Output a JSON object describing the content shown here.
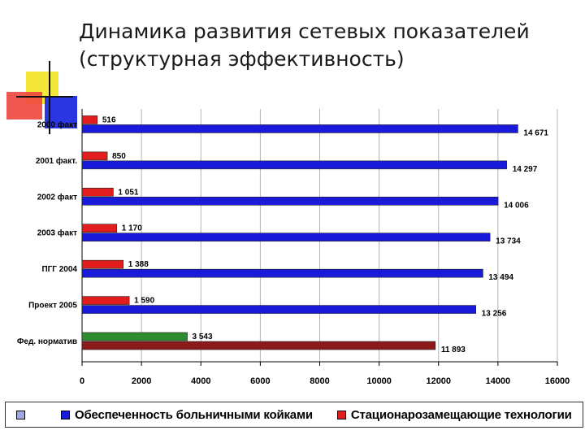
{
  "title": {
    "line1": "Динамика развития сетевых показателей",
    "line2": "(структурная эффективность)"
  },
  "colors": {
    "beds": "#1a1adb",
    "tech": "#e21d1d",
    "norm_tech": "#2e8b2e",
    "norm_beds": "#8b1a1a",
    "legend_misc": "#9da6e6"
  },
  "chart_data": {
    "type": "bar",
    "orientation": "horizontal",
    "categories": [
      "2000 факт",
      "2001 факт.",
      "2002 факт",
      "2003 факт",
      "ПГГ 2004",
      "Проект 2005",
      "Фед. норматив"
    ],
    "series": [
      {
        "name": "Стационарозамещающие технологии",
        "values": [
          516,
          850,
          1051,
          1170,
          1388,
          1590,
          3543
        ],
        "labels": [
          "516",
          "850",
          "1 051",
          "1 170",
          "1 388",
          "1 590",
          "3 543"
        ]
      },
      {
        "name": "Обеспеченность больничными койками",
        "values": [
          14671,
          14297,
          14006,
          13734,
          13494,
          13256,
          11893
        ],
        "labels": [
          "14 671",
          "14 297",
          "14 006",
          "13 734",
          "13 494",
          "13 256",
          "11 893"
        ]
      }
    ],
    "xlim": [
      0,
      16000
    ],
    "xticks": [
      "0",
      "2000",
      "4000",
      "6000",
      "8000",
      "10000",
      "12000",
      "14000",
      "16000"
    ],
    "grid": "vertical",
    "legend": "bottom"
  }
}
